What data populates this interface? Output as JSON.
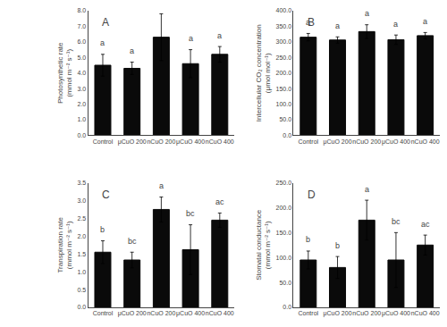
{
  "chart_data": [
    {
      "type": "bar",
      "title": "A",
      "ylabel": "Photosynthetic rate\n(mmol m⁻² s⁻¹)",
      "categories": [
        "Control",
        "μCuO 200",
        "nCuO 200",
        "μCuO 400",
        "nCuO 400"
      ],
      "values": [
        4.5,
        4.3,
        6.3,
        4.6,
        5.2
      ],
      "errors": [
        0.7,
        0.4,
        1.5,
        0.9,
        0.5
      ],
      "annotations": [
        "a",
        "a",
        "a",
        "a",
        "a"
      ],
      "color": "#0a0a0a",
      "ylim": [
        0.0,
        8.0
      ],
      "yticks": [
        {
          "value": 0,
          "label": "0.0"
        },
        {
          "value": 1,
          "label": "1.0"
        },
        {
          "value": 2,
          "label": "2.0"
        },
        {
          "value": 3,
          "label": "3.0"
        },
        {
          "value": 4,
          "label": "4.0"
        },
        {
          "value": 5,
          "label": "5.0"
        },
        {
          "value": 6,
          "label": "6.0"
        },
        {
          "value": 7,
          "label": "7.0"
        },
        {
          "value": 8,
          "label": "8.0"
        }
      ],
      "grid": false
    },
    {
      "type": "bar",
      "title": "B",
      "ylabel": "Intercellular CO₂ concentration\n(μmol mol⁻¹)",
      "categories": [
        "Control",
        "μCuO 200",
        "nCuO 200",
        "μCuO 400",
        "nCuO 400"
      ],
      "values": [
        315,
        306,
        333,
        307,
        320
      ],
      "errors": [
        12,
        10,
        22,
        15,
        10
      ],
      "annotations": [
        "a",
        "a",
        "a",
        "a",
        "a"
      ],
      "color": "#0a0a0a",
      "ylim": [
        0.0,
        400.0
      ],
      "yticks": [
        {
          "value": 0,
          "label": "0.0"
        },
        {
          "value": 50,
          "label": "50.0"
        },
        {
          "value": 100,
          "label": "100.0"
        },
        {
          "value": 150,
          "label": "150.0"
        },
        {
          "value": 200,
          "label": "200.0"
        },
        {
          "value": 250,
          "label": "250.0"
        },
        {
          "value": 300,
          "label": "300.0"
        },
        {
          "value": 350,
          "label": "350.0"
        },
        {
          "value": 400,
          "label": "400.0"
        }
      ],
      "grid": false
    },
    {
      "type": "bar",
      "title": "C",
      "ylabel": "Transpiration rate\n(mmol m⁻² s⁻¹)",
      "categories": [
        "Control",
        "μCuO 200",
        "nCuO 200",
        "μCuO 400",
        "nCuO 400"
      ],
      "values": [
        1.55,
        1.33,
        2.75,
        1.62,
        2.45
      ],
      "errors": [
        0.32,
        0.22,
        0.35,
        0.7,
        0.2
      ],
      "annotations": [
        "b",
        "bc",
        "a",
        "bc",
        "ac"
      ],
      "color": "#0a0a0a",
      "ylim": [
        0.0,
        3.5
      ],
      "yticks": [
        {
          "value": 0,
          "label": "0.0"
        },
        0.5,
        {
          "value": 1,
          "label": "1.0"
        },
        1.5,
        {
          "value": 2,
          "label": "2.0"
        },
        2.5,
        {
          "value": 3,
          "label": "3.0"
        },
        3.5
      ],
      "grid": false
    },
    {
      "type": "bar",
      "title": "D",
      "ylabel": "Stomatal conductance\n(mmol m⁻² s⁻¹)",
      "categories": [
        "Control",
        "μCuO 200",
        "nCuO 200",
        "μCuO 400",
        "nCuO 400"
      ],
      "values": [
        95,
        80,
        175,
        95,
        125
      ],
      "errors": [
        18,
        22,
        40,
        55,
        20
      ],
      "annotations": [
        "b",
        "b",
        "a",
        "bc",
        "ac"
      ],
      "color": "#0a0a0a",
      "ylim": [
        0.0,
        250.0
      ],
      "yticks": [
        {
          "value": 0,
          "label": "0.0"
        },
        {
          "value": 50,
          "label": "50.0"
        },
        {
          "value": 100,
          "label": "100.0"
        },
        {
          "value": 150,
          "label": "150.0"
        },
        {
          "value": 200,
          "label": "200.0"
        },
        {
          "value": 250,
          "label": "250.0"
        }
      ],
      "grid": false
    }
  ]
}
